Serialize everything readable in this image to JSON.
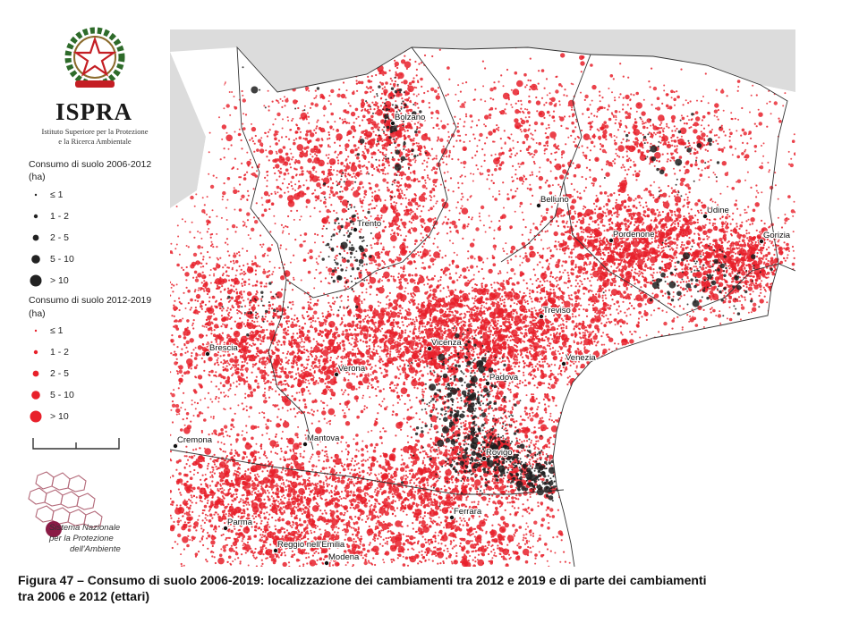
{
  "org": {
    "name": "ISPRA",
    "subtitle_line1": "Istituto Superiore per la Protezione",
    "subtitle_line2": "e la Ricerca Ambientale"
  },
  "legend": {
    "group1": {
      "title": "Consumo di suolo 2006-2012",
      "unit": "(ha)",
      "color": "#222222",
      "classes": [
        {
          "label": "≤ 1",
          "level": 1
        },
        {
          "label": "1 - 2",
          "level": 2
        },
        {
          "label": "2 - 5",
          "level": 3
        },
        {
          "label": "5 - 10",
          "level": 4
        },
        {
          "label": "> 10",
          "level": 5
        }
      ]
    },
    "group2": {
      "title": "Consumo di suolo 2012-2019",
      "unit": "(ha)",
      "color": "#e8202a",
      "classes": [
        {
          "label": "≤ 1",
          "level": 1
        },
        {
          "label": "1 - 2",
          "level": 2
        },
        {
          "label": "2 - 5",
          "level": 3
        },
        {
          "label": "5 - 10",
          "level": 4
        },
        {
          "label": "> 10",
          "level": 5
        }
      ]
    }
  },
  "snpa": {
    "line1": "Sistema Nazionale",
    "line2": "per la Protezione",
    "line3": "dell'Ambiente"
  },
  "map": {
    "cities": [
      {
        "name": "Bolzano",
        "key": "bolzano"
      },
      {
        "name": "Belluno",
        "key": "belluno"
      },
      {
        "name": "Trento",
        "key": "trento"
      },
      {
        "name": "Udine",
        "key": "udine"
      },
      {
        "name": "Pordenone",
        "key": "pordenone"
      },
      {
        "name": "Gorizia",
        "key": "gorizia"
      },
      {
        "name": "Treviso",
        "key": "treviso"
      },
      {
        "name": "Brescia",
        "key": "brescia"
      },
      {
        "name": "Vicenza",
        "key": "vicenza"
      },
      {
        "name": "Venezia",
        "key": "venezia"
      },
      {
        "name": "Verona",
        "key": "verona"
      },
      {
        "name": "Padova",
        "key": "padova"
      },
      {
        "name": "Cremona",
        "key": "cremona"
      },
      {
        "name": "Mantova",
        "key": "mantova"
      },
      {
        "name": "Rovigo",
        "key": "rovigo"
      },
      {
        "name": "Ferrara",
        "key": "ferrara"
      },
      {
        "name": "Parma",
        "key": "parma"
      },
      {
        "name": "Reggio nell'Emilia",
        "key": "reggio"
      },
      {
        "name": "Modena",
        "key": "modena"
      }
    ],
    "colors": {
      "change_2012_2019": "#e8202a",
      "change_2006_2012": "#1e1e1e",
      "sea": "#ffffff",
      "outside": "#dcdcdc",
      "border": "#333333"
    }
  },
  "caption": {
    "line1": "Figura 47 – Consumo di suolo 2006-2019: localizzazione dei cambiamenti tra 2012 e 2019 e di parte dei cambiamenti",
    "line2": "tra 2006 e 2012 (ettari)"
  }
}
